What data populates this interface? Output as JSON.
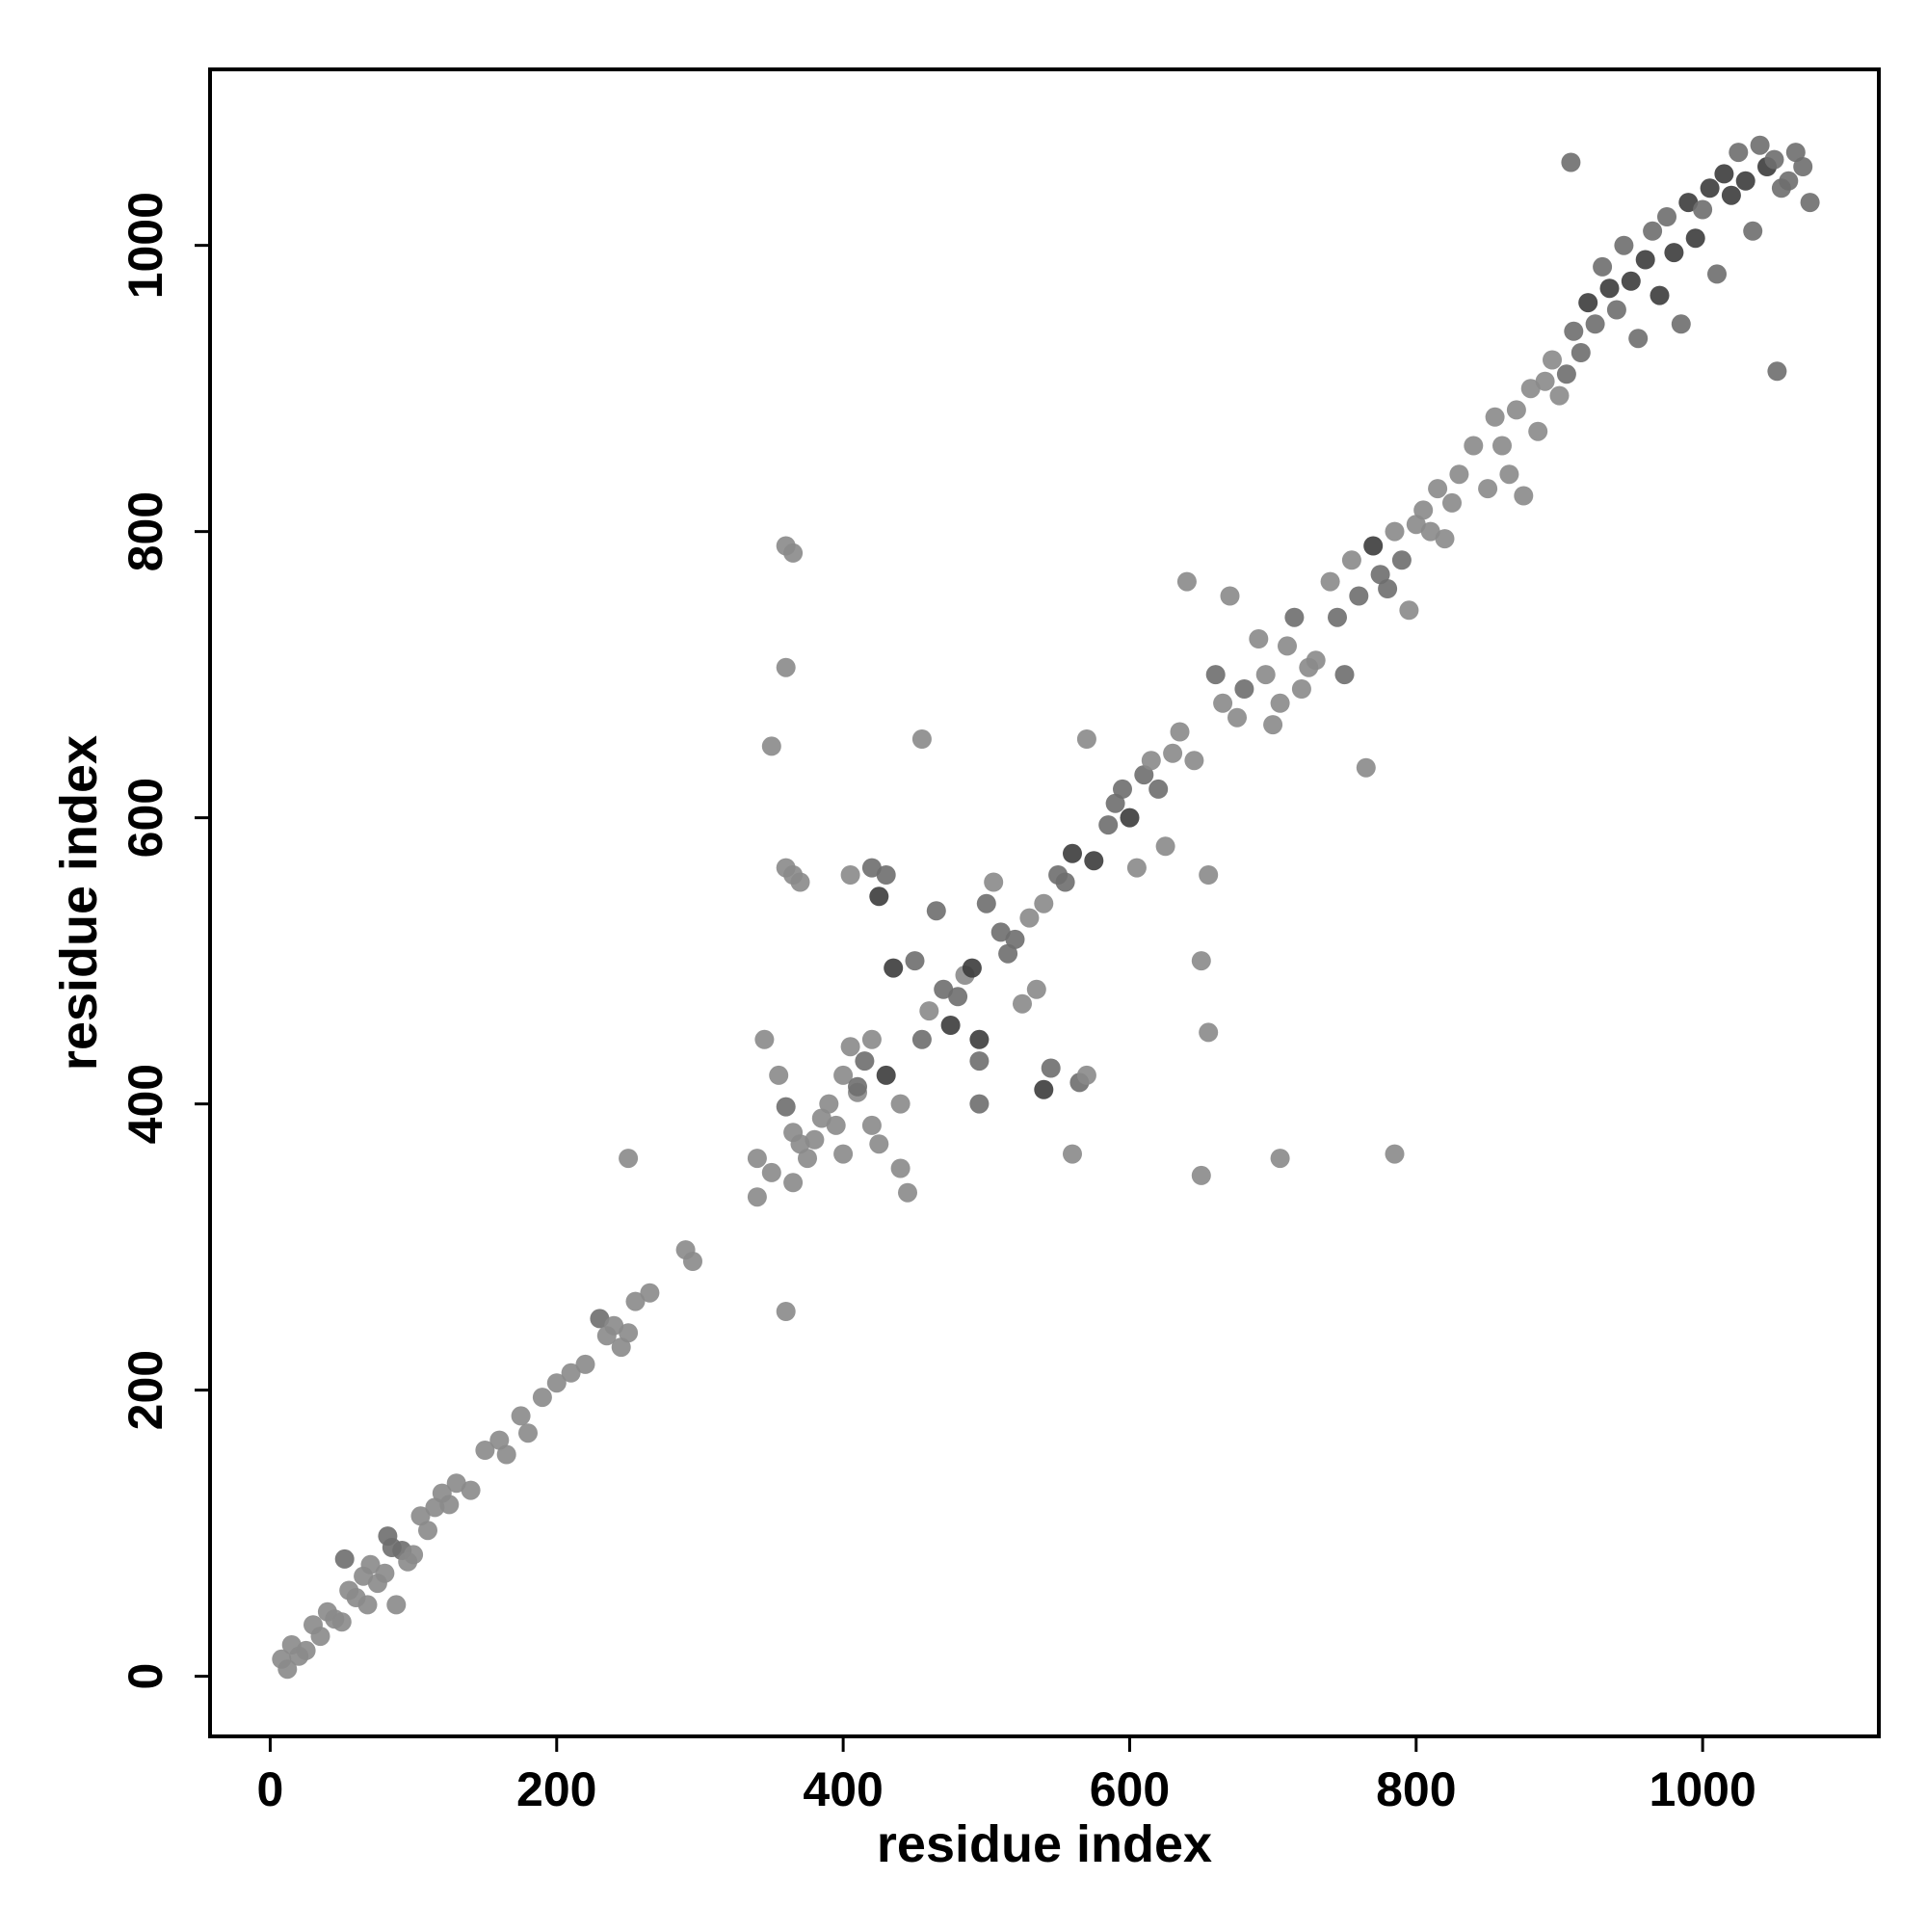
{
  "chart_data": {
    "type": "scatter",
    "xlabel": "residue index",
    "ylabel": "residue index",
    "xlim": [
      -42,
      1123
    ],
    "ylim": [
      -42,
      1123
    ],
    "x_ticks": [
      "0",
      "200",
      "400",
      "600",
      "800",
      "1000"
    ],
    "x_tick_values": [
      0,
      200,
      400,
      600,
      800,
      1000
    ],
    "y_ticks": [
      "0",
      "200",
      "400",
      "600",
      "800",
      "1000"
    ],
    "y_tick_values": [
      0,
      200,
      400,
      600,
      800,
      1000
    ],
    "grid": false,
    "legend": "none",
    "point_colors": {
      "light": "#8a8a8a",
      "mid": "#6e6e6e",
      "dark": "#3c3c3c"
    },
    "points": [
      [
        8,
        12,
        0
      ],
      [
        12,
        5,
        0
      ],
      [
        15,
        22,
        0
      ],
      [
        20,
        14,
        0
      ],
      [
        25,
        18,
        0
      ],
      [
        30,
        36,
        0
      ],
      [
        35,
        28,
        0
      ],
      [
        40,
        45,
        0
      ],
      [
        45,
        40,
        0
      ],
      [
        50,
        38,
        0
      ],
      [
        52,
        82,
        1
      ],
      [
        55,
        60,
        0
      ],
      [
        60,
        55,
        0
      ],
      [
        65,
        70,
        0
      ],
      [
        68,
        50,
        0
      ],
      [
        70,
        78,
        0
      ],
      [
        75,
        65,
        0
      ],
      [
        80,
        72,
        0
      ],
      [
        82,
        98,
        1
      ],
      [
        85,
        90,
        1
      ],
      [
        88,
        50,
        0
      ],
      [
        92,
        88,
        1
      ],
      [
        96,
        80,
        0
      ],
      [
        100,
        85,
        0
      ],
      [
        105,
        112,
        0
      ],
      [
        110,
        102,
        0
      ],
      [
        115,
        118,
        0
      ],
      [
        120,
        128,
        0
      ],
      [
        125,
        120,
        0
      ],
      [
        130,
        135,
        0
      ],
      [
        140,
        130,
        0
      ],
      [
        150,
        158,
        0
      ],
      [
        160,
        165,
        0
      ],
      [
        165,
        155,
        0
      ],
      [
        175,
        182,
        0
      ],
      [
        180,
        170,
        0
      ],
      [
        190,
        195,
        0
      ],
      [
        200,
        205,
        0
      ],
      [
        210,
        212,
        0
      ],
      [
        220,
        218,
        0
      ],
      [
        230,
        250,
        1
      ],
      [
        235,
        238,
        0
      ],
      [
        240,
        245,
        0
      ],
      [
        245,
        230,
        0
      ],
      [
        250,
        240,
        0
      ],
      [
        255,
        262,
        0
      ],
      [
        265,
        268,
        0
      ],
      [
        250,
        362,
        0
      ],
      [
        290,
        298,
        0
      ],
      [
        295,
        290,
        0
      ],
      [
        340,
        335,
        0
      ],
      [
        340,
        362,
        0
      ],
      [
        345,
        445,
        0
      ],
      [
        350,
        352,
        0
      ],
      [
        350,
        650,
        0
      ],
      [
        355,
        420,
        0
      ],
      [
        360,
        398,
        1
      ],
      [
        365,
        380,
        0
      ],
      [
        360,
        255,
        0
      ],
      [
        365,
        345,
        0
      ],
      [
        360,
        790,
        0
      ],
      [
        365,
        785,
        0
      ],
      [
        360,
        705,
        0
      ],
      [
        360,
        565,
        0
      ],
      [
        365,
        560,
        0
      ],
      [
        370,
        555,
        0
      ],
      [
        370,
        372,
        0
      ],
      [
        375,
        362,
        0
      ],
      [
        380,
        375,
        0
      ],
      [
        385,
        390,
        0
      ],
      [
        390,
        400,
        0
      ],
      [
        395,
        385,
        0
      ],
      [
        400,
        365,
        0
      ],
      [
        400,
        420,
        0
      ],
      [
        405,
        440,
        0
      ],
      [
        405,
        560,
        0
      ],
      [
        410,
        408,
        0
      ],
      [
        410,
        412,
        1
      ],
      [
        415,
        430,
        1
      ],
      [
        420,
        445,
        0
      ],
      [
        420,
        385,
        0
      ],
      [
        425,
        372,
        0
      ],
      [
        420,
        565,
        1
      ],
      [
        425,
        545,
        2
      ],
      [
        430,
        560,
        1
      ],
      [
        430,
        420,
        2
      ],
      [
        435,
        495,
        2
      ],
      [
        440,
        400,
        0
      ],
      [
        440,
        355,
        0
      ],
      [
        445,
        338,
        0
      ],
      [
        450,
        500,
        1
      ],
      [
        455,
        655,
        0
      ],
      [
        455,
        445,
        1
      ],
      [
        460,
        465,
        0
      ],
      [
        465,
        535,
        1
      ],
      [
        470,
        480,
        1
      ],
      [
        475,
        455,
        2
      ],
      [
        480,
        475,
        1
      ],
      [
        485,
        490,
        0
      ],
      [
        490,
        495,
        2
      ],
      [
        495,
        445,
        2
      ],
      [
        495,
        430,
        1
      ],
      [
        495,
        400,
        1
      ],
      [
        500,
        540,
        1
      ],
      [
        505,
        555,
        0
      ],
      [
        510,
        520,
        1
      ],
      [
        515,
        505,
        1
      ],
      [
        520,
        515,
        1
      ],
      [
        525,
        470,
        0
      ],
      [
        530,
        530,
        0
      ],
      [
        535,
        480,
        0
      ],
      [
        540,
        540,
        0
      ],
      [
        540,
        410,
        2
      ],
      [
        545,
        425,
        1
      ],
      [
        550,
        560,
        1
      ],
      [
        555,
        555,
        1
      ],
      [
        560,
        575,
        2
      ],
      [
        560,
        365,
        0
      ],
      [
        565,
        415,
        1
      ],
      [
        570,
        420,
        0
      ],
      [
        570,
        655,
        0
      ],
      [
        575,
        570,
        2
      ],
      [
        585,
        595,
        1
      ],
      [
        590,
        610,
        1
      ],
      [
        595,
        620,
        1
      ],
      [
        600,
        600,
        2
      ],
      [
        605,
        565,
        0
      ],
      [
        610,
        630,
        1
      ],
      [
        615,
        640,
        0
      ],
      [
        620,
        620,
        1
      ],
      [
        625,
        580,
        0
      ],
      [
        630,
        645,
        0
      ],
      [
        635,
        660,
        0
      ],
      [
        640,
        765,
        0
      ],
      [
        645,
        640,
        0
      ],
      [
        650,
        350,
        0
      ],
      [
        650,
        500,
        0
      ],
      [
        655,
        560,
        0
      ],
      [
        655,
        450,
        0
      ],
      [
        660,
        700,
        1
      ],
      [
        665,
        680,
        0
      ],
      [
        670,
        755,
        0
      ],
      [
        675,
        670,
        0
      ],
      [
        680,
        690,
        1
      ],
      [
        690,
        725,
        0
      ],
      [
        695,
        700,
        0
      ],
      [
        700,
        665,
        0
      ],
      [
        705,
        680,
        0
      ],
      [
        705,
        362,
        0
      ],
      [
        710,
        720,
        0
      ],
      [
        715,
        740,
        1
      ],
      [
        720,
        690,
        0
      ],
      [
        725,
        705,
        0
      ],
      [
        730,
        710,
        0
      ],
      [
        740,
        765,
        0
      ],
      [
        745,
        740,
        1
      ],
      [
        750,
        700,
        1
      ],
      [
        755,
        780,
        0
      ],
      [
        760,
        755,
        1
      ],
      [
        765,
        635,
        0
      ],
      [
        770,
        790,
        2
      ],
      [
        775,
        770,
        1
      ],
      [
        780,
        760,
        1
      ],
      [
        785,
        365,
        0
      ],
      [
        785,
        800,
        0
      ],
      [
        790,
        780,
        1
      ],
      [
        795,
        745,
        0
      ],
      [
        800,
        805,
        0
      ],
      [
        805,
        815,
        0
      ],
      [
        810,
        800,
        0
      ],
      [
        815,
        830,
        0
      ],
      [
        820,
        795,
        0
      ],
      [
        825,
        820,
        0
      ],
      [
        830,
        840,
        0
      ],
      [
        840,
        860,
        0
      ],
      [
        850,
        830,
        0
      ],
      [
        855,
        880,
        0
      ],
      [
        860,
        860,
        0
      ],
      [
        865,
        840,
        0
      ],
      [
        870,
        885,
        0
      ],
      [
        875,
        825,
        0
      ],
      [
        880,
        900,
        0
      ],
      [
        885,
        870,
        0
      ],
      [
        890,
        905,
        0
      ],
      [
        895,
        920,
        0
      ],
      [
        900,
        895,
        0
      ],
      [
        905,
        910,
        1
      ],
      [
        908,
        1058,
        1
      ],
      [
        910,
        940,
        1
      ],
      [
        915,
        925,
        1
      ],
      [
        920,
        960,
        2
      ],
      [
        925,
        945,
        1
      ],
      [
        930,
        985,
        1
      ],
      [
        935,
        970,
        2
      ],
      [
        940,
        955,
        1
      ],
      [
        945,
        1000,
        1
      ],
      [
        950,
        975,
        2
      ],
      [
        955,
        935,
        1
      ],
      [
        960,
        990,
        2
      ],
      [
        965,
        1010,
        1
      ],
      [
        970,
        965,
        2
      ],
      [
        975,
        1020,
        1
      ],
      [
        980,
        995,
        2
      ],
      [
        985,
        945,
        1
      ],
      [
        990,
        1030,
        2
      ],
      [
        995,
        1005,
        2
      ],
      [
        1000,
        1025,
        1
      ],
      [
        1005,
        1040,
        2
      ],
      [
        1010,
        980,
        1
      ],
      [
        1015,
        1050,
        2
      ],
      [
        1020,
        1035,
        2
      ],
      [
        1025,
        1065,
        1
      ],
      [
        1030,
        1045,
        2
      ],
      [
        1035,
        1010,
        1
      ],
      [
        1040,
        1070,
        1
      ],
      [
        1045,
        1055,
        2
      ],
      [
        1050,
        1060,
        1
      ],
      [
        1052,
        912,
        1
      ],
      [
        1055,
        1040,
        1
      ],
      [
        1060,
        1045,
        1
      ],
      [
        1065,
        1065,
        1
      ],
      [
        1070,
        1055,
        1
      ],
      [
        1075,
        1030,
        1
      ]
    ]
  }
}
